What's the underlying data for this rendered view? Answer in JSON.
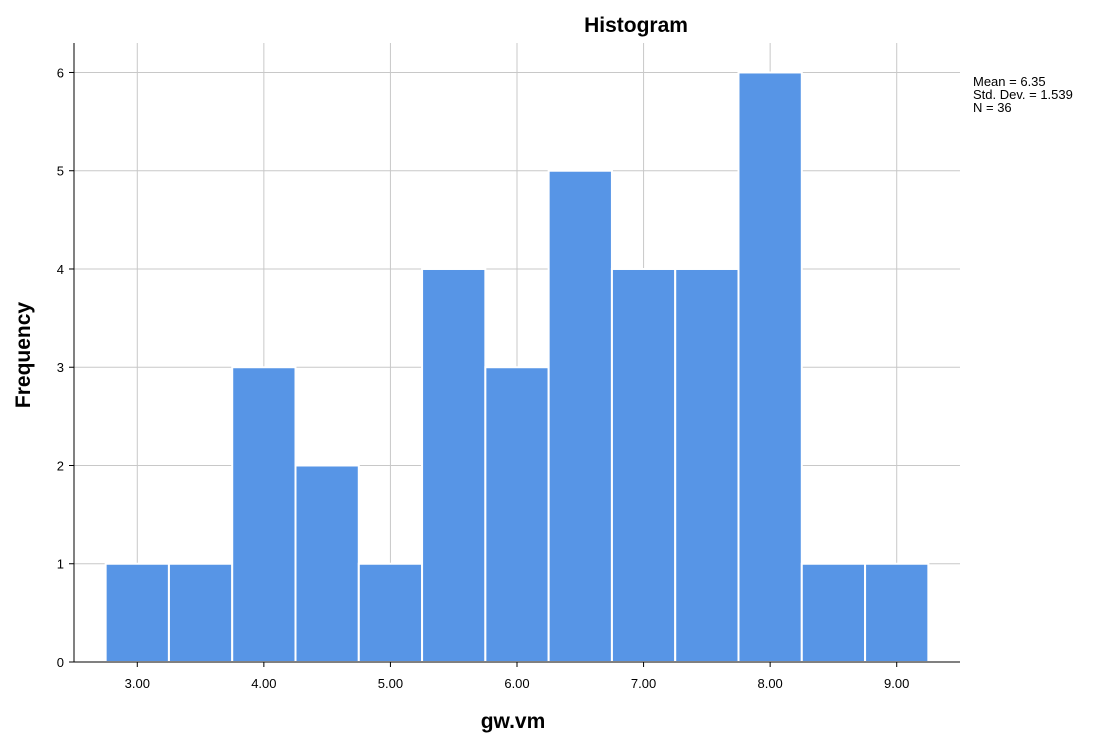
{
  "chart_data": {
    "type": "bar",
    "title": "Histogram",
    "xlabel": "gw.vm",
    "ylabel": "Frequency",
    "bin_width": 0.5,
    "bins": [
      {
        "start": 2.75,
        "end": 3.25,
        "count": 1
      },
      {
        "start": 3.25,
        "end": 3.75,
        "count": 1
      },
      {
        "start": 3.75,
        "end": 4.25,
        "count": 3
      },
      {
        "start": 4.25,
        "end": 4.75,
        "count": 2
      },
      {
        "start": 4.75,
        "end": 5.25,
        "count": 1
      },
      {
        "start": 5.25,
        "end": 5.75,
        "count": 4
      },
      {
        "start": 5.75,
        "end": 6.25,
        "count": 3
      },
      {
        "start": 6.25,
        "end": 6.75,
        "count": 5
      },
      {
        "start": 6.75,
        "end": 7.25,
        "count": 4
      },
      {
        "start": 7.25,
        "end": 7.75,
        "count": 4
      },
      {
        "start": 7.75,
        "end": 8.25,
        "count": 6
      },
      {
        "start": 8.25,
        "end": 8.75,
        "count": 1
      },
      {
        "start": 8.75,
        "end": 9.25,
        "count": 1
      }
    ],
    "x_ticks": [
      3.0,
      4.0,
      5.0,
      6.0,
      7.0,
      8.0,
      9.0
    ],
    "x_tick_labels": [
      "3.00",
      "4.00",
      "5.00",
      "6.00",
      "7.00",
      "8.00",
      "9.00"
    ],
    "y_ticks": [
      0,
      1,
      2,
      3,
      4,
      5,
      6
    ],
    "y_tick_labels": [
      "0",
      "1",
      "2",
      "3",
      "4",
      "5",
      "6"
    ],
    "xlim": [
      2.5,
      9.5
    ],
    "ylim": [
      0,
      6.3
    ],
    "grid": true,
    "bar_color": "#5795e6",
    "stats": {
      "mean_text": "Mean = 6.35",
      "std_text": "Std. Dev. = 1.539",
      "n_text": "N = 36"
    }
  }
}
